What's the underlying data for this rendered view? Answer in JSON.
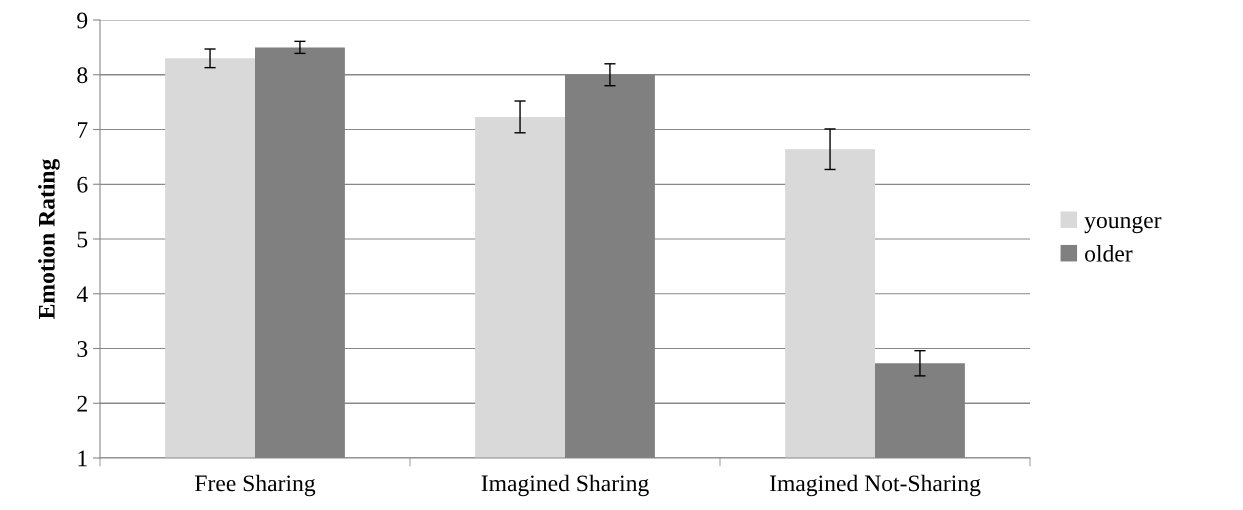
{
  "chart_data": {
    "type": "bar",
    "ylabel": "Emotion Rating",
    "categories": [
      "Free Sharing",
      "Imagined Sharing",
      "Imagined Not-Sharing"
    ],
    "series": [
      {
        "name": "younger",
        "color": "#d9d9d9",
        "values": [
          8.3,
          7.23,
          6.64
        ],
        "errors": [
          0.17,
          0.29,
          0.37
        ]
      },
      {
        "name": "older",
        "color": "#808080",
        "values": [
          8.5,
          8.0,
          2.73
        ],
        "errors": [
          0.11,
          0.2,
          0.23
        ]
      }
    ],
    "ylim": [
      1,
      9
    ],
    "yticks": [
      1,
      2,
      3,
      4,
      5,
      6,
      7,
      8,
      9
    ],
    "grid": "y",
    "legend": "right"
  }
}
